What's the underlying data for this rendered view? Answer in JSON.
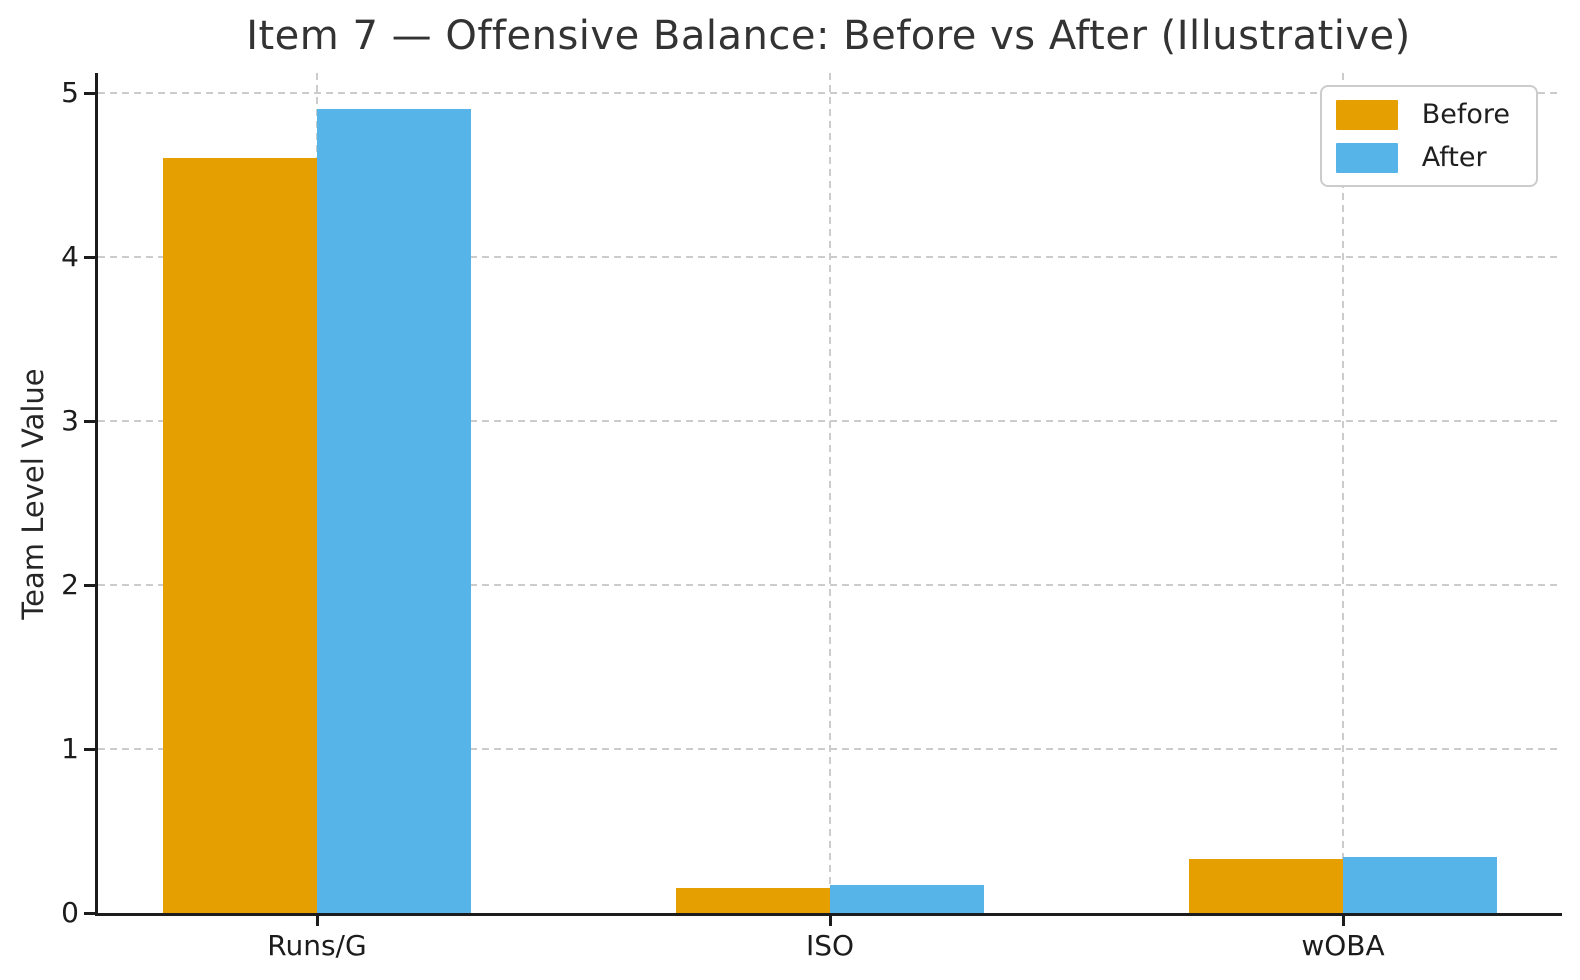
{
  "chart_data": {
    "type": "bar",
    "title": "Item 7 — Offensive Balance: Before vs After (Illustrative)",
    "xlabel": "",
    "ylabel": "Team Level Value",
    "categories": [
      "Runs/G",
      "ISO",
      "wOBA"
    ],
    "series": [
      {
        "name": "Before",
        "color": "#E69F00",
        "values": [
          4.6,
          0.15,
          0.33
        ]
      },
      {
        "name": "After",
        "color": "#56B4E9",
        "values": [
          4.9,
          0.17,
          0.34
        ]
      }
    ],
    "yticks": [
      0,
      1,
      2,
      3,
      4,
      5
    ],
    "ylim": [
      0,
      5.12
    ],
    "grid": true,
    "grid_style": "dashed",
    "legend_position": "upper right",
    "bar_width_units": 0.3,
    "colors": {
      "before": "#E69F00",
      "after": "#56B4E9",
      "grid": "#cccccc",
      "axis": "#1c1c1c",
      "text": "#333333"
    }
  }
}
